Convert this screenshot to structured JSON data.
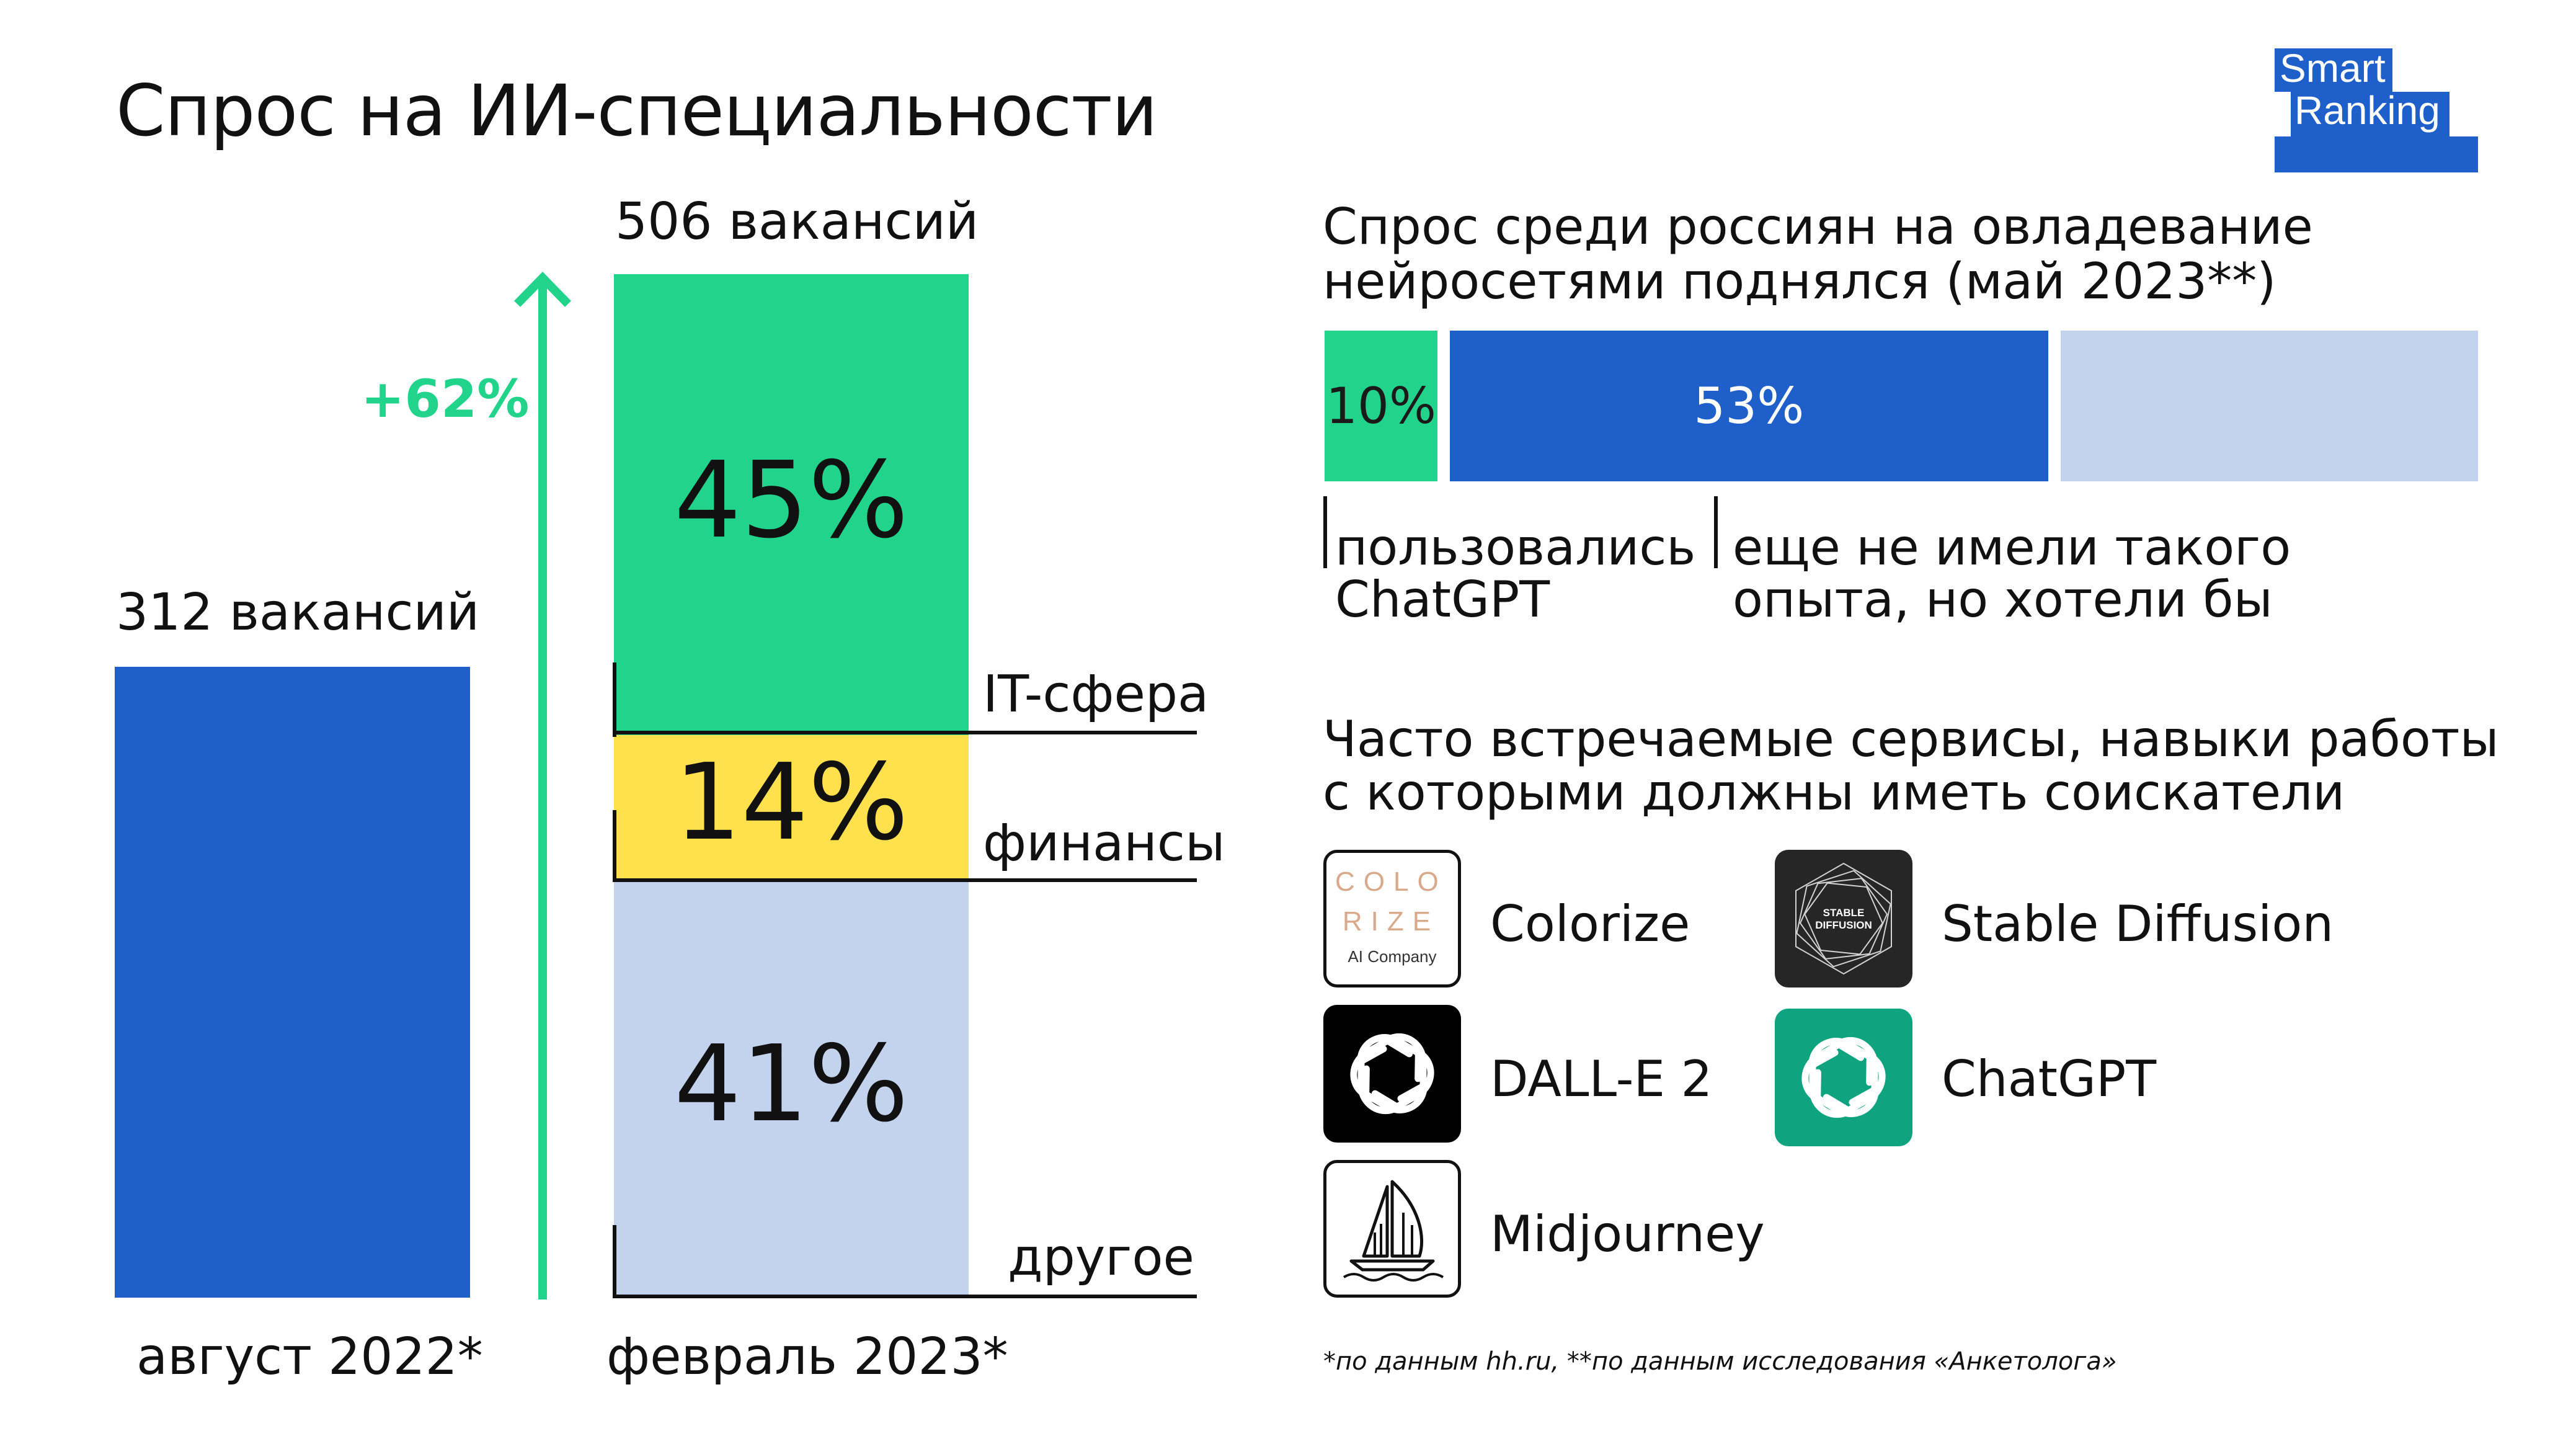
{
  "title": "Спрос на ИИ-специальности",
  "logo": {
    "line1": "Smart",
    "line2": "Ranking"
  },
  "colors": {
    "blue": "#1f5fc9",
    "green": "#22d38b",
    "yellow": "#ffe04d",
    "lightblue": "#c3d3ee",
    "openai_green": "#10a37f"
  },
  "chart_data": [
    {
      "type": "bar",
      "categories": [
        "август 2022*",
        "февраль 2023*"
      ],
      "values": [
        312,
        506
      ],
      "value_labels": [
        "312 вакансий",
        "506 вакансий"
      ],
      "growth_label": "+62%",
      "feb_breakdown": [
        {
          "name": "IT-сфера",
          "value": 45,
          "label": "45%"
        },
        {
          "name": "финансы",
          "value": 14,
          "label": "14%"
        },
        {
          "name": "другое",
          "value": 41,
          "label": "41%"
        }
      ]
    },
    {
      "type": "bar",
      "title": "Спрос среди россиян на овладевание нейросетями поднялся (май 2023**)",
      "title_lines": [
        "Спрос среди россиян на овладевание",
        "нейросетями поднялся (май 2023**)"
      ],
      "segments": [
        {
          "value": 10,
          "label": "10%",
          "name_lines": [
            "пользовались",
            "ChatGPT"
          ]
        },
        {
          "value": 53,
          "label": "53%",
          "name_lines": [
            "еще не имели такого",
            "опыта, но хотели бы"
          ]
        },
        {
          "value": 37,
          "label": ""
        }
      ]
    }
  ],
  "services": {
    "heading_lines": [
      "Часто встречаемые сервисы, навыки работы",
      "с которыми должны иметь соискатели"
    ],
    "items": [
      {
        "name": "Colorize",
        "icon": "colorize-logo",
        "logo_text": [
          "COLO",
          "RIZE",
          "AI Company"
        ]
      },
      {
        "name": "Stable Diffusion",
        "icon": "stable-diffusion-logo",
        "logo_text": [
          "STABLE",
          "DIFFUSION"
        ]
      },
      {
        "name": "DALL-E 2",
        "icon": "openai-logo"
      },
      {
        "name": "ChatGPT",
        "icon": "openai-logo"
      },
      {
        "name": "Midjourney",
        "icon": "midjourney-sailboat-logo"
      }
    ]
  },
  "footnote": "*по данным hh.ru, **по данным исследования «Анкетолога»"
}
